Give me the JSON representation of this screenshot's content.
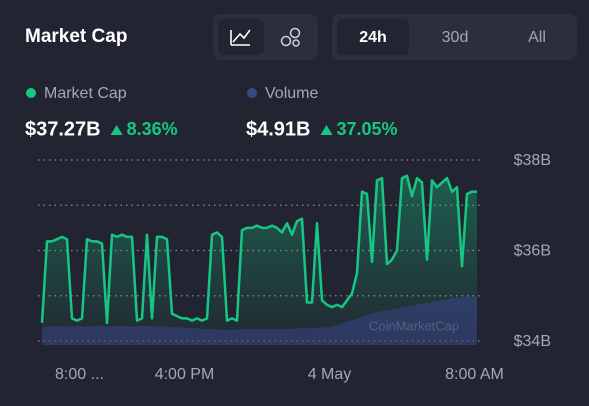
{
  "header": {
    "title": "Market Cap",
    "tabs": [
      "24h",
      "30d",
      "All"
    ],
    "active_tab": 0
  },
  "chart_data": {
    "type": "line",
    "watermark": "CoinMarketCap",
    "series": [
      {
        "name": "Market Cap",
        "color": "#16c784",
        "summary": {
          "label": "$37.27B",
          "change_label": "8.36%"
        },
        "values": [
          34.4,
          36.2,
          36.2,
          36.25,
          36.3,
          36.25,
          34.5,
          34.45,
          34.5,
          36.25,
          36.2,
          36.2,
          36.15,
          34.4,
          36.35,
          36.3,
          36.35,
          36.3,
          36.3,
          34.45,
          34.5,
          36.35,
          34.5,
          36.3,
          36.3,
          36.25,
          34.6,
          34.55,
          34.5,
          34.5,
          34.45,
          34.5,
          34.45,
          34.5,
          36.35,
          36.4,
          36.3,
          34.45,
          34.5,
          34.45,
          36.45,
          36.5,
          36.5,
          36.55,
          36.5,
          36.5,
          36.55,
          36.5,
          36.4,
          36.6,
          36.35,
          36.65,
          36.7,
          34.85,
          34.85,
          36.6,
          34.9,
          34.8,
          34.75,
          34.8,
          34.75,
          34.9,
          35.05,
          35.5,
          37.3,
          37.25,
          35.75,
          37.55,
          37.6,
          35.7,
          35.8,
          36.0,
          37.6,
          37.65,
          37.2,
          37.6,
          37.5,
          35.8,
          37.55,
          37.4,
          37.5,
          37.6,
          37.3,
          37.4,
          35.65,
          37.25,
          37.3,
          37.3
        ]
      },
      {
        "name": "Volume",
        "color": "#3a4686",
        "axis": "y2",
        "summary": {
          "label": "$4.91B",
          "change_label": "37.05%"
        },
        "values": [
          1.5,
          1.6,
          1.6,
          1.7,
          1.6,
          1.6,
          1.6,
          1.7,
          1.6,
          1.6,
          1.6,
          1.7,
          1.7,
          1.6,
          1.6,
          1.7,
          1.7,
          1.6,
          1.6,
          1.6,
          1.7,
          1.7,
          1.6,
          1.6,
          1.6,
          1.6,
          1.5,
          1.5,
          1.5,
          1.4,
          1.4,
          1.4,
          1.3,
          1.3,
          1.3,
          1.3,
          1.2,
          1.2,
          1.2,
          1.3,
          1.3,
          1.3,
          1.3,
          1.3,
          1.3,
          1.3,
          1.3,
          1.3,
          1.3,
          1.3,
          1.3,
          1.4,
          1.4,
          1.4,
          1.4,
          1.4,
          1.5,
          1.5,
          1.6,
          1.7,
          1.9,
          2.1,
          2.3,
          2.5,
          2.7,
          2.9,
          3.0,
          3.2,
          3.3,
          3.4,
          3.5,
          3.6,
          3.7,
          3.8,
          3.9,
          4.0,
          4.1,
          4.2,
          4.3,
          4.4,
          4.5,
          4.6,
          4.7,
          4.8,
          4.8,
          4.9,
          4.9,
          4.9
        ]
      }
    ],
    "ylim": [
      34,
      38
    ],
    "yticks": [
      {
        "value": 34,
        "label": "$34B"
      },
      {
        "value": 36,
        "label": "$36B"
      },
      {
        "value": 38,
        "label": "$38B"
      }
    ],
    "minor_gridlines": [
      35,
      37
    ],
    "y2lim": [
      0,
      20
    ],
    "xticks": [
      {
        "value": 7.5,
        "label": "8:00 ..."
      },
      {
        "value": 28.5,
        "label": "4:00 PM"
      },
      {
        "value": 57.5,
        "label": "4 May"
      },
      {
        "value": 86.5,
        "label": "8:00 AM"
      }
    ],
    "grid": true
  }
}
